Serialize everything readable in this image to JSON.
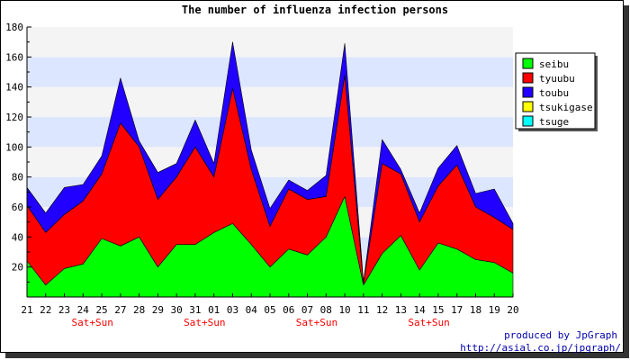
{
  "chart_data": {
    "type": "area",
    "stacked": true,
    "title": "The number of influenza infection persons",
    "categories": [
      "21",
      "22",
      "23",
      "24",
      "25",
      "27",
      "28",
      "29",
      "30",
      "31",
      "01",
      "03",
      "04",
      "05",
      "06",
      "07",
      "08",
      "10",
      "11",
      "12",
      "13",
      "14",
      "15",
      "17",
      "18",
      "19",
      "20"
    ],
    "weekend_label": "Sat+Sun",
    "weekend_indices": [
      3,
      9,
      15,
      21
    ],
    "ylim": [
      0,
      180
    ],
    "yticks": [
      20,
      40,
      60,
      80,
      100,
      120,
      140,
      160,
      180
    ],
    "grid": true,
    "legend_position": "right",
    "series": [
      {
        "name": "seibu",
        "color": "#00ff00",
        "values": [
          24,
          8,
          19,
          22,
          39,
          34,
          40,
          20,
          35,
          35,
          43,
          49,
          35,
          20,
          32,
          28,
          40,
          67,
          8,
          29,
          41,
          18,
          36,
          32,
          25,
          23,
          16
        ]
      },
      {
        "name": "tyuubu",
        "color": "#ff0000",
        "values": [
          37,
          35,
          36,
          42,
          43,
          82,
          60,
          45,
          45,
          65,
          37,
          90,
          50,
          27,
          40,
          37,
          27,
          81,
          1,
          60,
          41,
          32,
          38,
          56,
          35,
          30,
          29
        ]
      },
      {
        "name": "toubu",
        "color": "#2200ff",
        "values": [
          12,
          13,
          18,
          11,
          12,
          30,
          4,
          18,
          9,
          18,
          9,
          31,
          13,
          12,
          6,
          6,
          14,
          21,
          1,
          16,
          3,
          6,
          12,
          13,
          9,
          19,
          4
        ]
      },
      {
        "name": "tsukigase",
        "color": "#ffff00",
        "values": [
          0,
          0,
          0,
          0,
          0,
          0,
          0,
          0,
          0,
          0,
          0,
          0,
          0,
          0,
          0,
          0,
          0,
          0,
          0,
          0,
          0,
          0,
          0,
          0,
          0,
          0,
          0
        ]
      },
      {
        "name": "tsuge",
        "color": "#00ffff",
        "values": [
          0,
          0,
          0,
          0,
          0,
          0,
          0,
          0,
          0,
          0,
          0,
          0,
          0,
          0,
          0,
          0,
          0,
          0,
          0,
          0,
          0,
          0,
          0,
          0,
          0,
          0,
          0
        ]
      }
    ],
    "footer": {
      "line1": "produced by JpGraph",
      "line2": "http://asial.co.jp/jpgraph/"
    }
  }
}
